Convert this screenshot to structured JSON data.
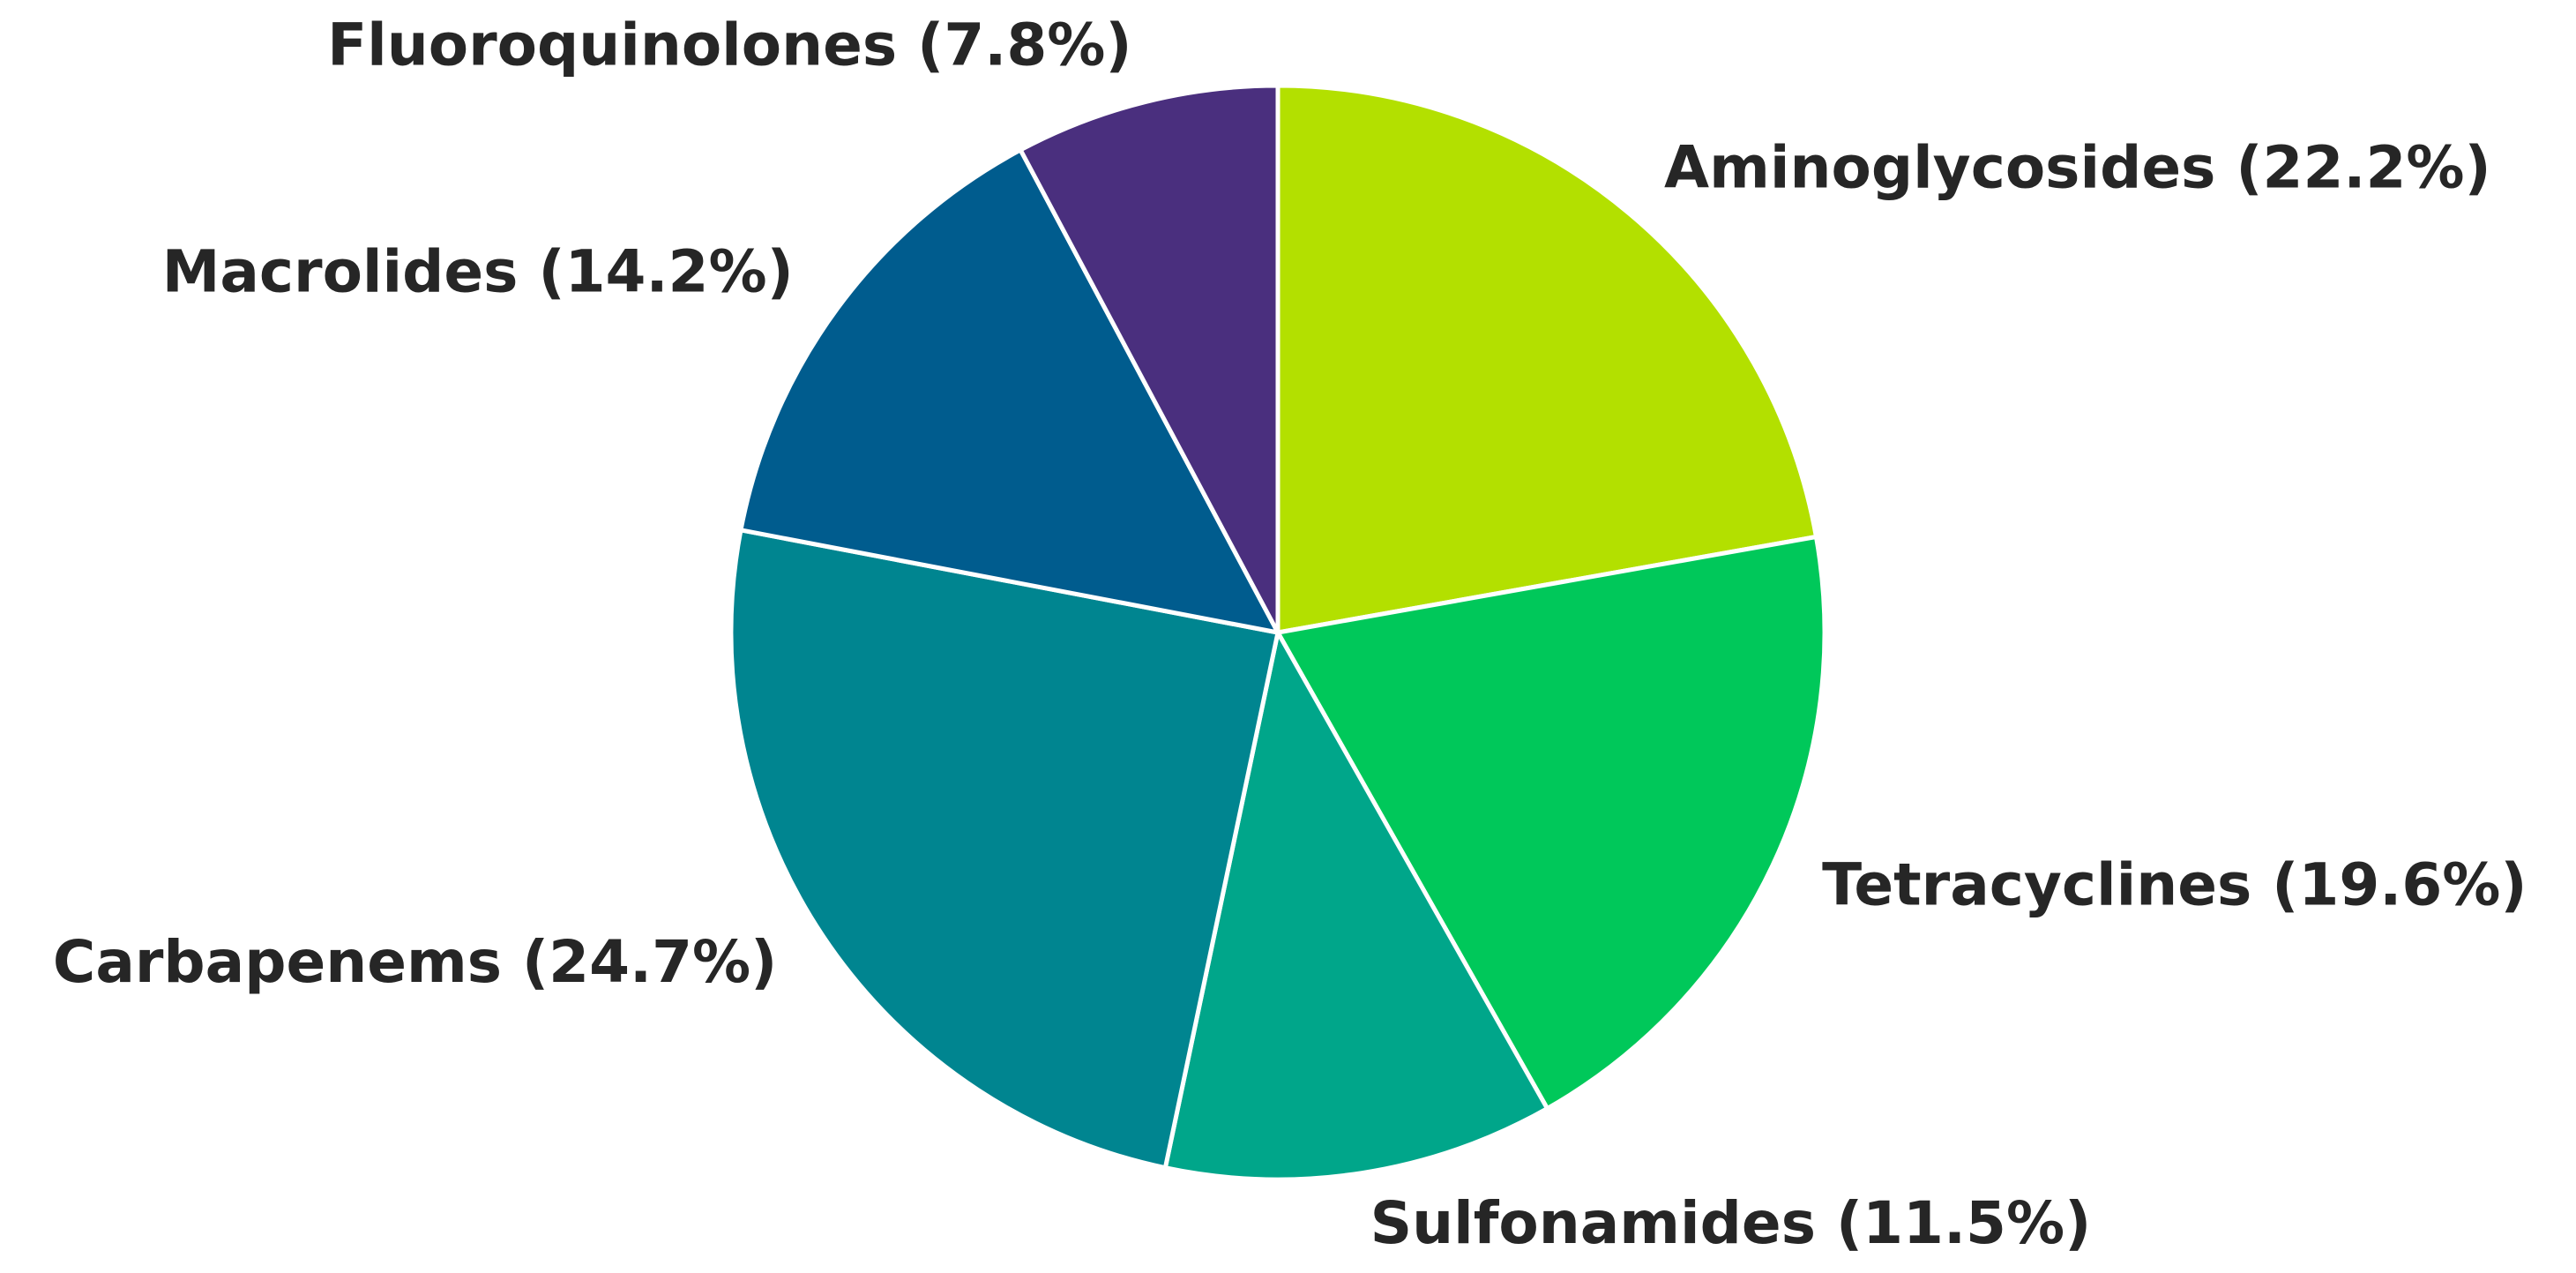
{
  "chart_data": {
    "type": "pie",
    "categories": [
      "Aminoglycosides",
      "Tetracyclines",
      "Sulfonamides",
      "Carbapenems",
      "Macrolides",
      "Fluoroquinolones"
    ],
    "values": [
      22.2,
      19.6,
      11.5,
      24.7,
      14.2,
      7.8
    ],
    "value_labels": [
      "(22.2%)",
      "(19.6%)",
      "(11.5%)",
      "(24.7%)",
      "(14.2%)",
      "(7.8%)"
    ],
    "colors": [
      "#b3e000",
      "#00c85a",
      "#00a68a",
      "#008590",
      "#005c8e",
      "#4a2f7e"
    ]
  }
}
